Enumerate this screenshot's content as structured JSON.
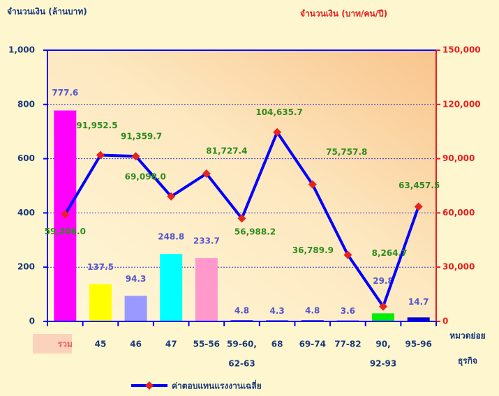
{
  "chart_data": {
    "type": "bar_line",
    "y_title": "จำนวนเงิน (ล้านบาท)",
    "y2_title": "จำนวนเงิน (บาท/คน/ปี)",
    "x_title": [
      "หมวดย่อย",
      "ธุรกิจ"
    ],
    "categories": [
      "รวม",
      "45",
      "46",
      "47",
      "55-56",
      [
        "59-60,",
        "62-63"
      ],
      "68",
      "69-74",
      "77-82",
      [
        "90,",
        "92-93"
      ],
      "95-96"
    ],
    "ylim": [
      0,
      1000
    ],
    "yticks": [
      0,
      200,
      400,
      600,
      800,
      {
        "value": 1000,
        "label": "1,000"
      }
    ],
    "y2lim": [
      0,
      150000
    ],
    "y2ticks": [
      0,
      {
        "value": 30000,
        "label": "30,000"
      },
      {
        "value": 60000,
        "label": "60,000"
      },
      {
        "value": 90000,
        "label": "90,000"
      },
      {
        "value": 120000,
        "label": "120,000"
      },
      {
        "value": 150000,
        "label": "150,000"
      }
    ],
    "grid": true,
    "series": [
      {
        "type": "bar",
        "values": [
          777.6,
          137.5,
          94.3,
          248.8,
          233.7,
          4.8,
          4.3,
          4.8,
          3.6,
          29.8,
          14.7
        ],
        "colors": [
          "#ff00ff",
          "#ffff00",
          "#9999ff",
          "#00ffff",
          "#ff99cc",
          "#3333cc",
          "#3333cc",
          "#3333cc",
          "#3333cc",
          "#00ee00",
          "#0000cc"
        ]
      },
      {
        "type": "line",
        "axis": "y2",
        "name": "ค่าตอบแทนแรงงานเฉลี่ย",
        "color": "#0000ff",
        "marker_color": "#e8231e",
        "values": [
          59206.0,
          91952.5,
          91359.7,
          69098.0,
          81727.4,
          56988.2,
          104635.7,
          75757.8,
          36789.9,
          8264.7,
          63457.5
        ],
        "value_labels": [
          "59,206.0",
          "91,952.5",
          "91,359.7",
          "69,098.0",
          "81,727.4",
          "56,988.2",
          "104,635.7",
          "75,757.8",
          "36,789.9",
          "8,264.7",
          "63,457.5"
        ]
      }
    ],
    "legend": "bottom"
  }
}
